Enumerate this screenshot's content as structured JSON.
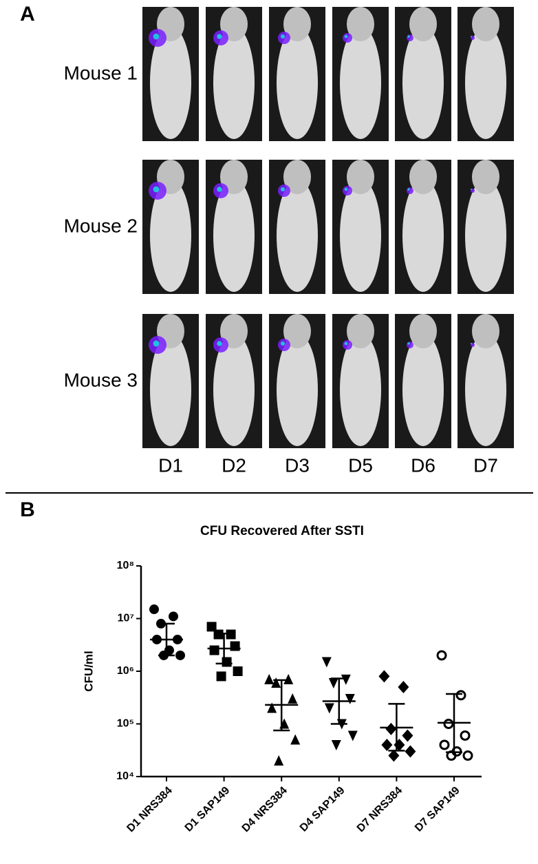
{
  "panel_a": {
    "label": "A",
    "rows": [
      "Mouse 1",
      "Mouse 2",
      "Mouse 3"
    ],
    "columns": [
      "D1",
      "D2",
      "D3",
      "D5",
      "D6",
      "D7"
    ]
  },
  "chart_data": {
    "type": "scatter",
    "panel_label": "B",
    "title": "CFU Recovered After SSTI",
    "y_label": "CFU/ml",
    "categories": [
      "D1 NRS384",
      "D1 SAP149",
      "D4 NRS384",
      "D4 SAP149",
      "D7 NRS384",
      "D7 SAP149"
    ],
    "markers": [
      "circle",
      "square",
      "triangle",
      "triangle-down",
      "diamond",
      "circle-open"
    ],
    "color": "#000000",
    "points": [
      [
        15000000,
        11000000,
        8000000,
        4000000,
        4000000,
        2500000,
        2000000,
        2000000
      ],
      [
        7000000,
        5000000,
        5000000,
        3000000,
        2500000,
        1500000,
        1000000,
        800000
      ],
      [
        700000,
        700000,
        600000,
        300000,
        200000,
        100000,
        50000,
        20000
      ],
      [
        1500000,
        700000,
        600000,
        300000,
        200000,
        100000,
        60000,
        40000
      ],
      [
        800000,
        500000,
        80000,
        60000,
        40000,
        40000,
        30000,
        25000
      ],
      [
        2000000,
        350000,
        100000,
        60000,
        40000,
        30000,
        25000,
        25000
      ]
    ],
    "means": [
      4000000,
      2700000,
      230000,
      270000,
      85000,
      105000
    ],
    "error_low": [
      2000000,
      1400000,
      75000,
      100000,
      31000,
      29000
    ],
    "error_high": [
      8000000,
      5200000,
      680000,
      730000,
      240000,
      370000
    ],
    "y_scale": "log",
    "ylim": [
      10000,
      100000000
    ],
    "yticks": [
      {
        "value": 10000,
        "label": "10⁴"
      },
      {
        "value": 100000,
        "label": "10⁵"
      },
      {
        "value": 1000000,
        "label": "10⁶"
      },
      {
        "value": 10000000,
        "label": "10⁷"
      },
      {
        "value": 100000000,
        "label": "10⁸"
      }
    ]
  }
}
